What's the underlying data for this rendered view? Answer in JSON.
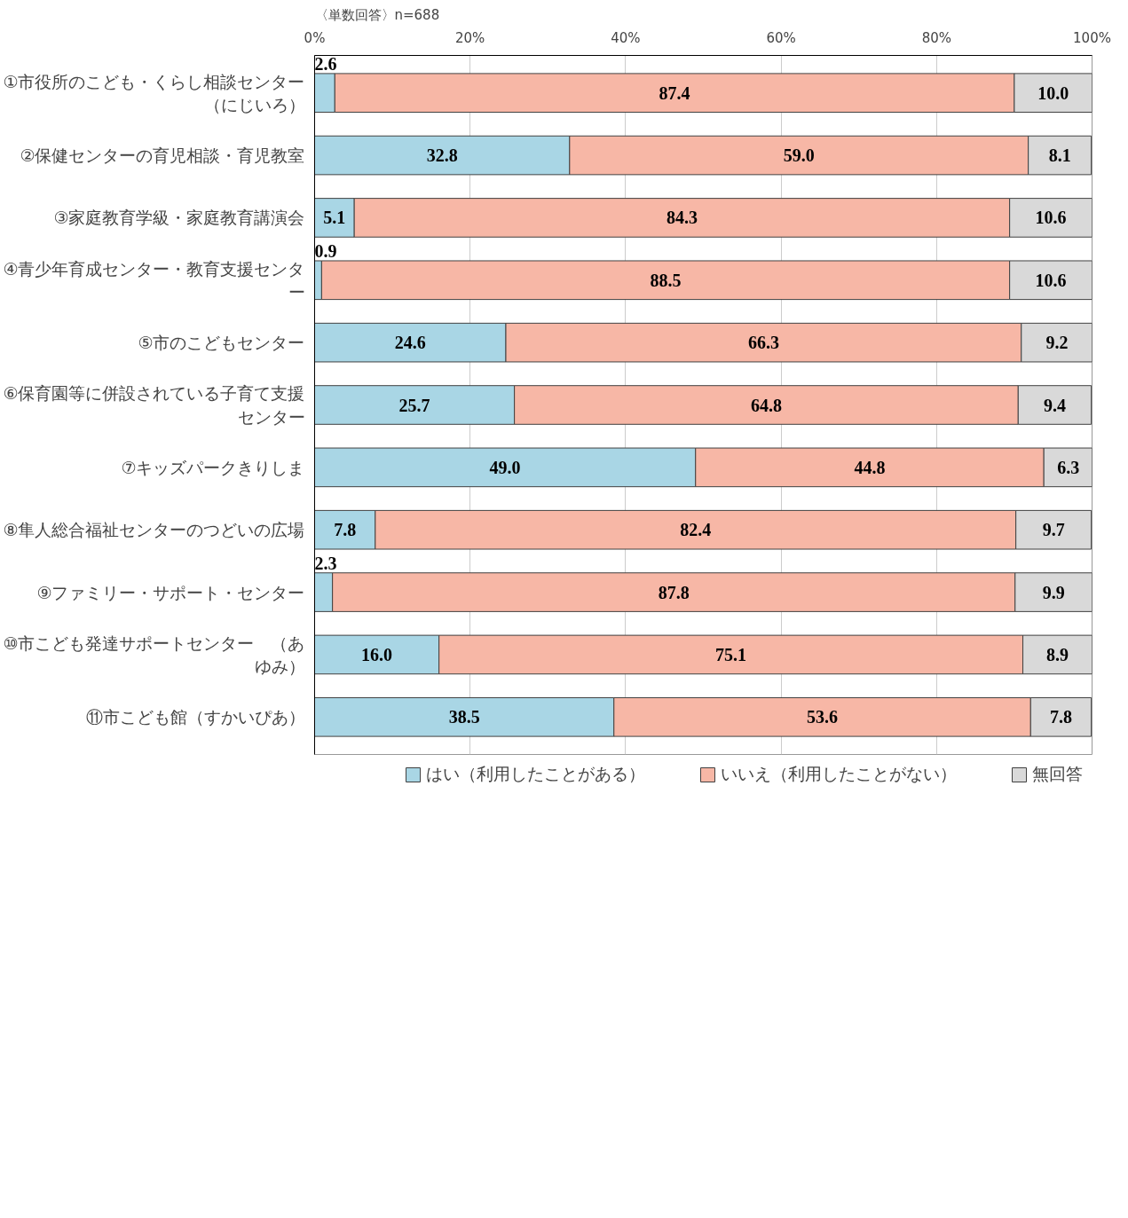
{
  "chart_data": {
    "type": "bar",
    "orientation": "horizontal",
    "stacked": true,
    "categories": [
      "①市役所のこども・くらし相談センター（にじいろ）",
      "②保健センターの育児相談・育児教室",
      "③家庭教育学級・家庭教育講演会",
      "④青少年育成センター・教育支援センター",
      "⑤市のこどもセンター",
      "⑥保育園等に併設されている子育て支援センター",
      "⑦キッズパークきりしま",
      "⑧隼人総合福祉センターのつどいの広場",
      "⑨ファミリー・サポート・センター",
      "⑩市こども発達サポートセンター　（あゆみ）",
      "⑪市こども館（すかいぴあ）"
    ],
    "series": [
      {
        "name": "はい（利用したことがある）",
        "color": "#a9d6e5",
        "values": [
          2.6,
          32.8,
          5.1,
          0.9,
          24.6,
          25.7,
          49.0,
          7.8,
          2.3,
          16.0,
          38.5
        ],
        "value_labels": [
          "2.6",
          "32.8",
          "5.1",
          "0.9",
          "24.6",
          "25.7",
          "49.0",
          "7.8",
          "2.3",
          "16.0",
          "38.5"
        ]
      },
      {
        "name": "いいえ（利用したことがない）",
        "color": "#f7b7a6",
        "values": [
          87.4,
          59.0,
          84.3,
          88.5,
          66.3,
          64.8,
          44.8,
          82.4,
          87.8,
          75.1,
          53.6
        ],
        "value_labels": [
          "87.4",
          "59.0",
          "84.3",
          "88.5",
          "66.3",
          "64.8",
          "44.8",
          "82.4",
          "87.8",
          "75.1",
          "53.6"
        ]
      },
      {
        "name": "無回答",
        "color": "#d9d9d9",
        "values": [
          10.0,
          8.1,
          10.6,
          10.6,
          9.2,
          9.4,
          6.3,
          9.7,
          9.9,
          8.9,
          7.8
        ],
        "value_labels": [
          "10.0",
          "8.1",
          "10.6",
          "10.6",
          "9.2",
          "9.4",
          "6.3",
          "9.7",
          "9.9",
          "8.9",
          "7.8"
        ]
      }
    ],
    "xlim": [
      0,
      100
    ],
    "xticks": [
      {
        "value": 0,
        "label": "0%"
      },
      {
        "value": 20,
        "label": "20%"
      },
      {
        "value": 40,
        "label": "40%"
      },
      {
        "value": 60,
        "label": "60%"
      },
      {
        "value": 80,
        "label": "80%"
      },
      {
        "value": 100,
        "label": "100%"
      }
    ],
    "grid": "x",
    "legend": "bottom",
    "annotations": [
      "〈単数回答〉n=688"
    ]
  }
}
